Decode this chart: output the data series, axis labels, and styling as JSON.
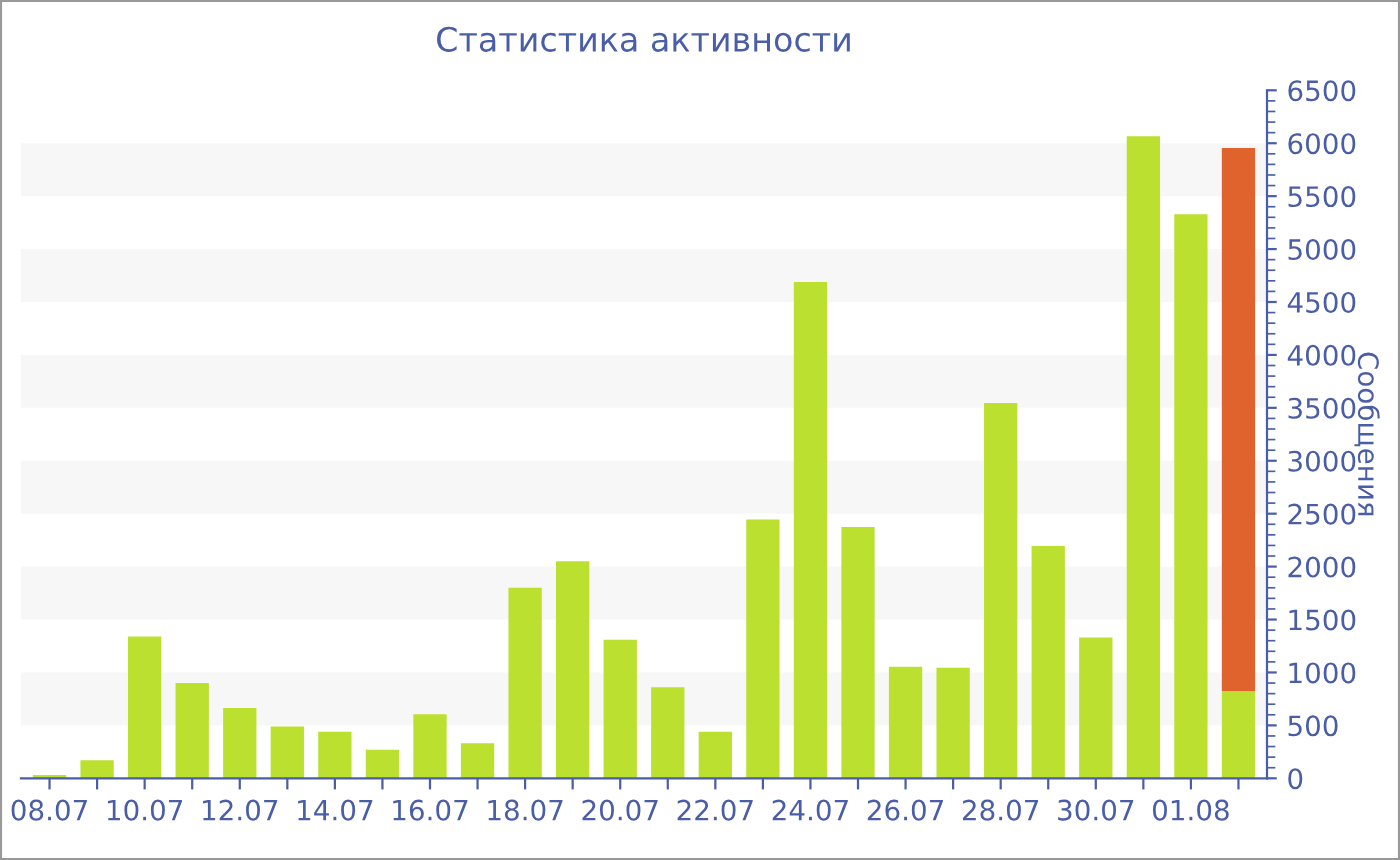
{
  "chart_data": {
    "type": "bar",
    "title": "Статистика активности",
    "ylabel": "Сообщения",
    "categories": [
      "08.07",
      null,
      "10.07",
      null,
      "12.07",
      null,
      "14.07",
      null,
      "16.07",
      null,
      "18.07",
      null,
      "20.07",
      null,
      "22.07",
      null,
      "24.07",
      null,
      "26.07",
      null,
      "28.07",
      null,
      "30.07",
      null,
      "01.08",
      null
    ],
    "stacked": true,
    "series": [
      {
        "color": "#bbe02f",
        "values": [
          30,
          170,
          1340,
          900,
          665,
          490,
          440,
          270,
          605,
          330,
          1800,
          2050,
          1310,
          860,
          440,
          2445,
          4690,
          2375,
          1055,
          1045,
          3545,
          2195,
          1330,
          6065,
          5330,
          825
        ]
      },
      {
        "color": "#e0632e",
        "values": [
          null,
          null,
          null,
          null,
          null,
          null,
          null,
          null,
          null,
          null,
          null,
          null,
          null,
          null,
          null,
          null,
          null,
          null,
          null,
          null,
          null,
          null,
          null,
          null,
          null,
          5130
        ]
      }
    ],
    "ylim": [
      0,
      6500
    ],
    "yticks": [
      0,
      500,
      1000,
      1500,
      2000,
      2500,
      3000,
      3500,
      4000,
      4500,
      5000,
      5500,
      6000,
      6500
    ],
    "bands": [
      {
        "axis": "y",
        "from": 500,
        "to": 1000,
        "color": "#f7f7f7"
      },
      {
        "axis": "y",
        "from": 1500,
        "to": 2000,
        "color": "#f7f7f7"
      },
      {
        "axis": "y",
        "from": 2500,
        "to": 3000,
        "color": "#f7f7f7"
      },
      {
        "axis": "y",
        "from": 3500,
        "to": 4000,
        "color": "#f7f7f7"
      },
      {
        "axis": "y",
        "from": 4500,
        "to": 5000,
        "color": "#f7f7f7"
      },
      {
        "axis": "y",
        "from": 5500,
        "to": 6000,
        "color": "#f7f7f7"
      }
    ],
    "legend": false
  }
}
